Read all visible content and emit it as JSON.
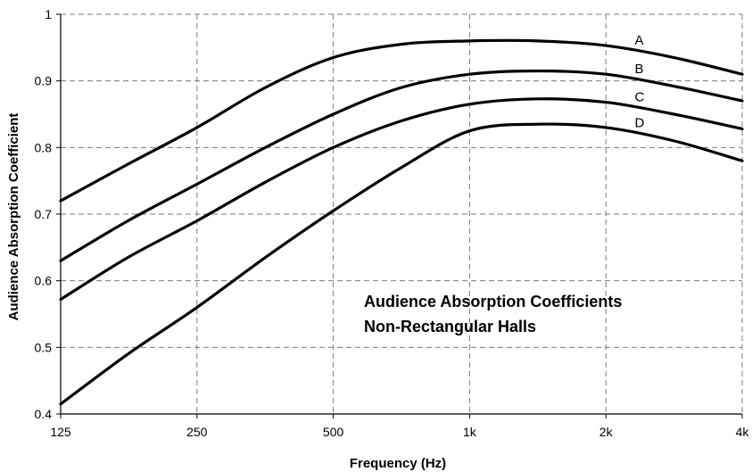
{
  "chart_data": {
    "type": "line",
    "xlabel": "Frequency (Hz)",
    "ylabel": "Audience Absorption Coefficient",
    "x_scale": "log2",
    "x_ticks": [
      125,
      250,
      500,
      1000,
      2000,
      4000
    ],
    "x_tick_labels": [
      "125",
      "250",
      "500",
      "1k",
      "2k",
      "4k"
    ],
    "ylim": [
      0.4,
      1.0
    ],
    "y_ticks": [
      0.4,
      0.5,
      0.6,
      0.7,
      0.8,
      0.9,
      1.0
    ],
    "y_tick_labels": [
      "0.4",
      "0.5",
      "0.6",
      "0.7",
      "0.8",
      "0.9",
      "1"
    ],
    "grid": true,
    "annotation": [
      "Audience Absorption Coefficients",
      "Non-Rectangular Halls"
    ],
    "series": [
      {
        "name": "A",
        "x": [
          125,
          176,
          250,
          354,
          500,
          707,
          1000,
          1414,
          2000,
          2828,
          4000
        ],
        "y": [
          0.72,
          0.775,
          0.83,
          0.89,
          0.935,
          0.955,
          0.96,
          0.96,
          0.953,
          0.935,
          0.91
        ]
      },
      {
        "name": "B",
        "x": [
          125,
          176,
          250,
          354,
          500,
          707,
          1000,
          1414,
          2000,
          2828,
          4000
        ],
        "y": [
          0.63,
          0.69,
          0.745,
          0.8,
          0.85,
          0.89,
          0.91,
          0.915,
          0.91,
          0.892,
          0.87
        ]
      },
      {
        "name": "C",
        "x": [
          125,
          176,
          250,
          354,
          500,
          707,
          1000,
          1414,
          2000,
          2828,
          4000
        ],
        "y": [
          0.572,
          0.635,
          0.69,
          0.748,
          0.8,
          0.84,
          0.865,
          0.873,
          0.868,
          0.85,
          0.828
        ]
      },
      {
        "name": "D",
        "x": [
          125,
          176,
          250,
          354,
          500,
          707,
          1000,
          1414,
          2000,
          2828,
          4000
        ],
        "y": [
          0.415,
          0.49,
          0.56,
          0.635,
          0.705,
          0.77,
          0.825,
          0.835,
          0.83,
          0.81,
          0.78
        ]
      }
    ]
  }
}
